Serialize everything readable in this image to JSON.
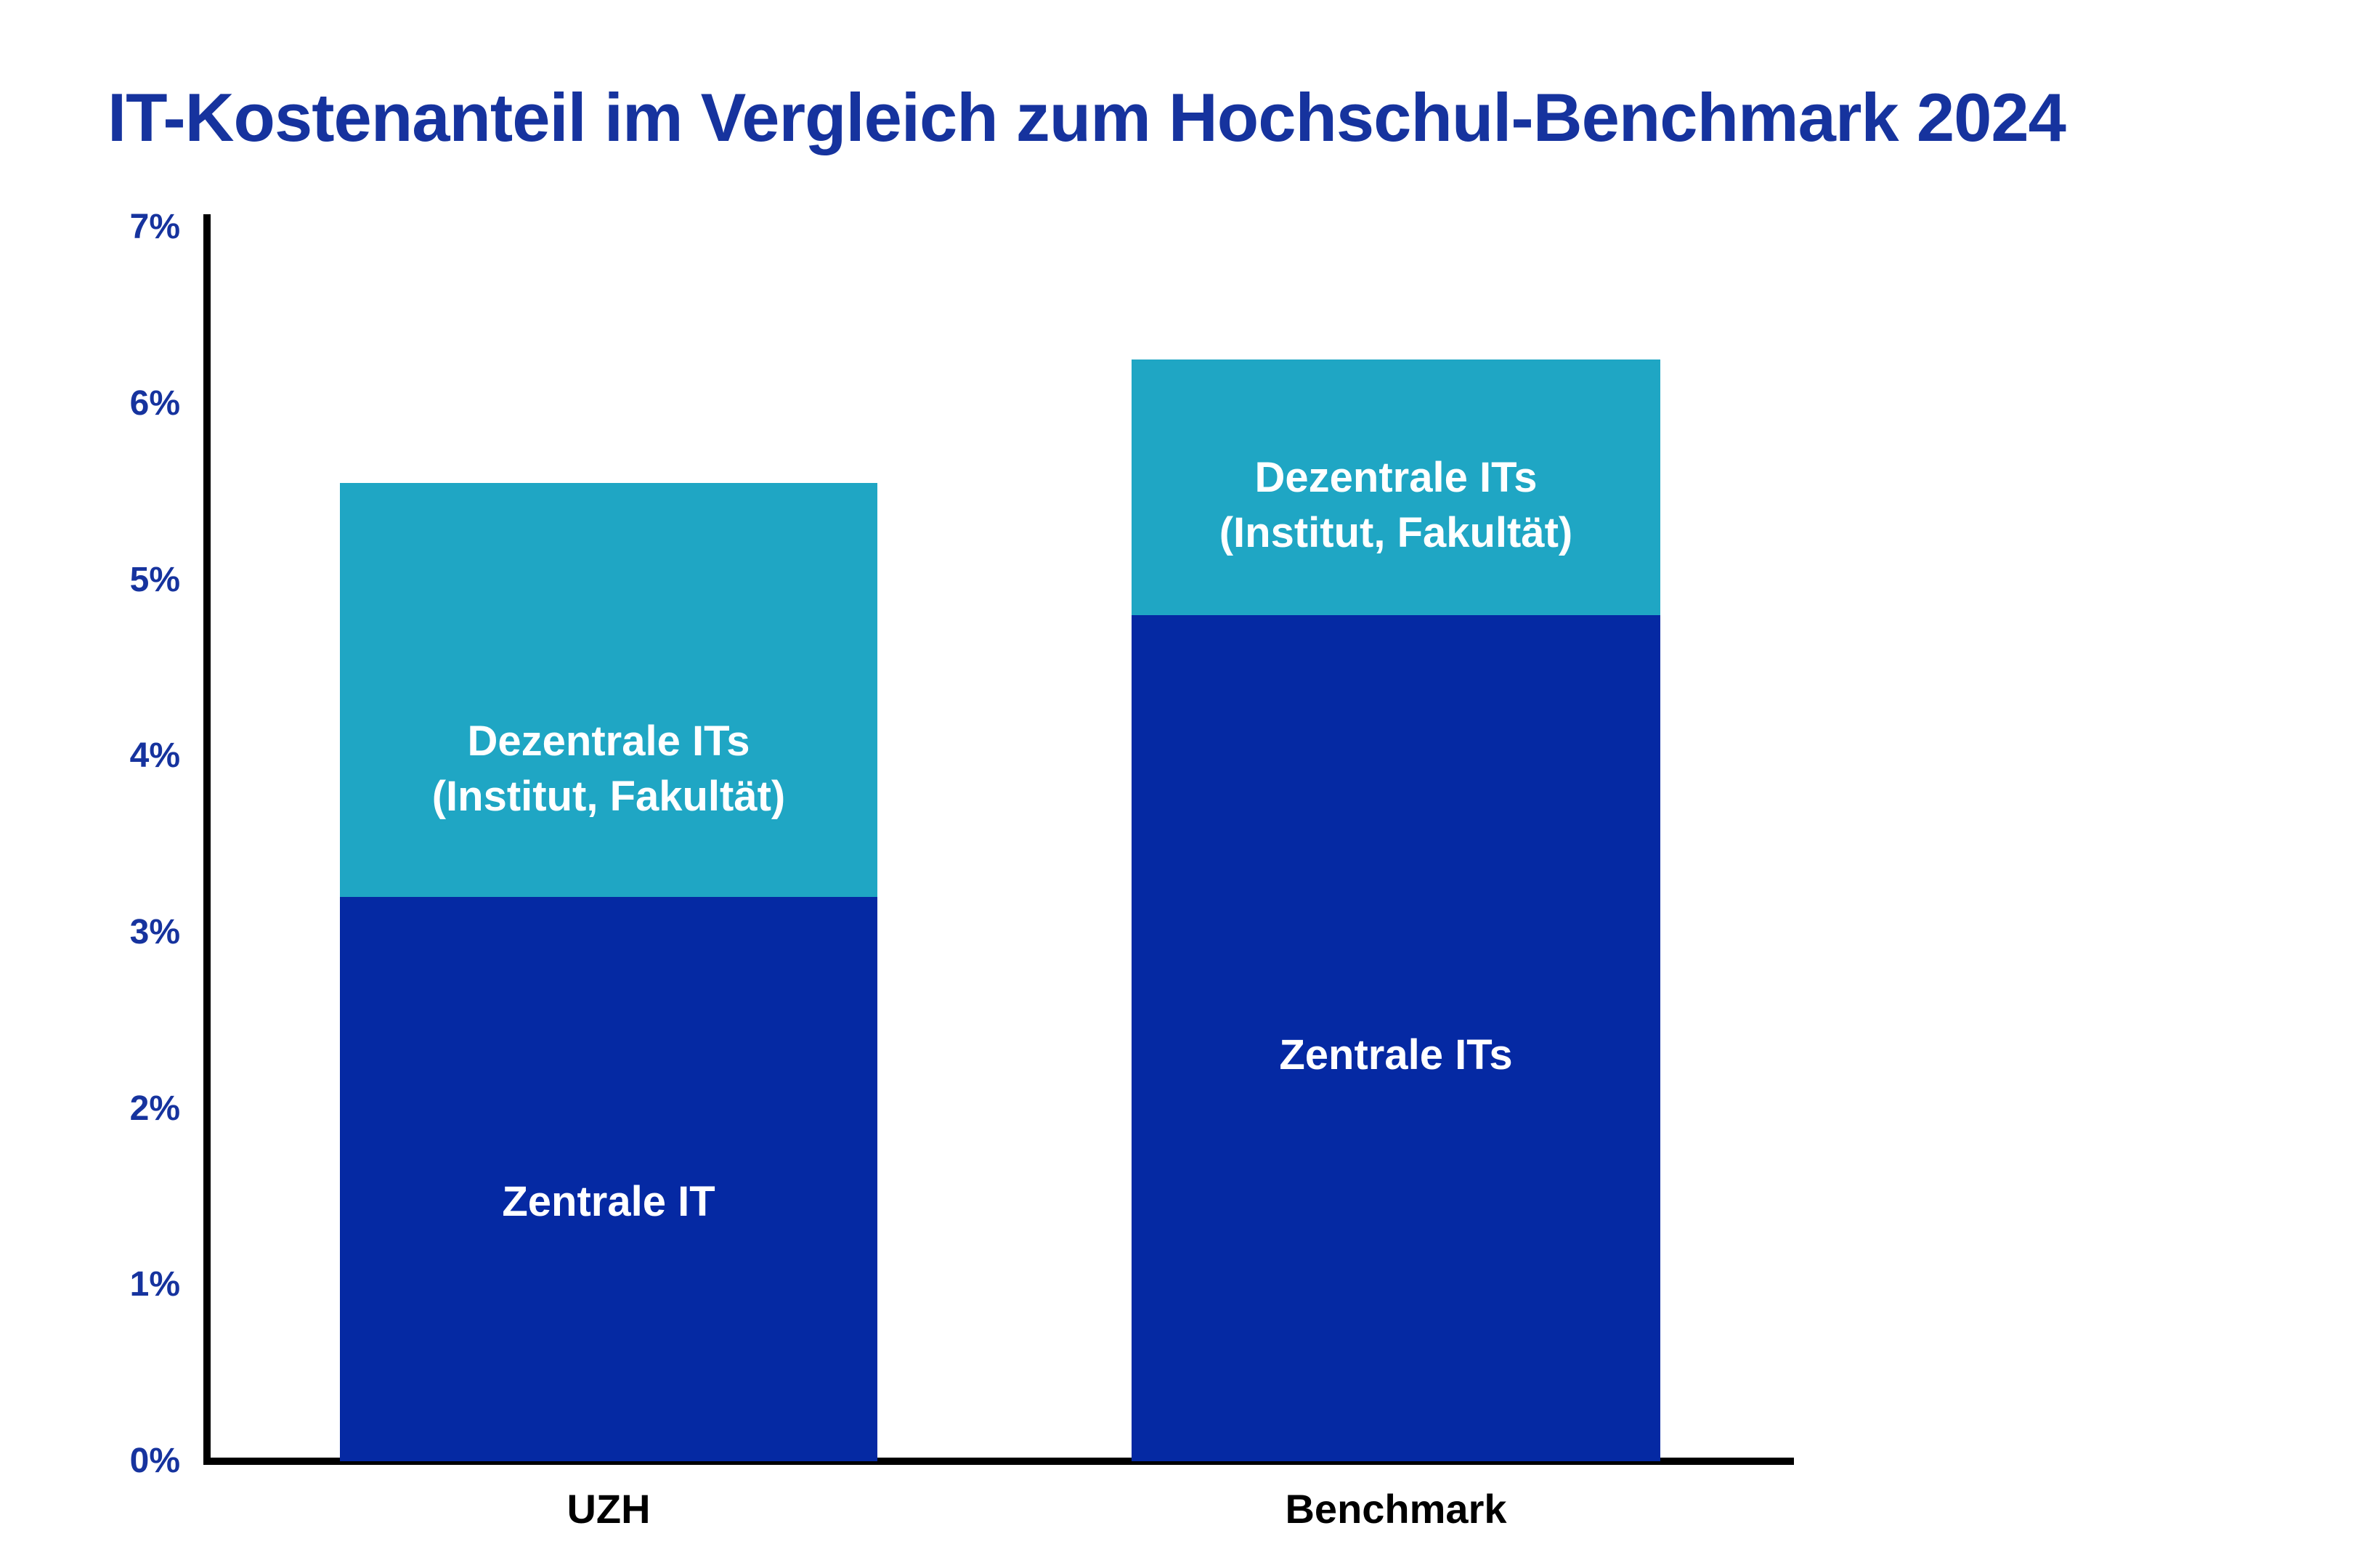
{
  "title": "IT-Kostenanteil im Vergleich zum Hochschul-Benchmark 2024",
  "colors": {
    "title_text": "#16339e",
    "tick_text": "#16339e",
    "axis": "#000000",
    "category_text": "#000000",
    "segment_label_text": "#ffffff",
    "zentrale_segment": "#0529a3",
    "dezentrale_segment": "#1fa6c4",
    "background": "#ffffff"
  },
  "chart_data": {
    "type": "bar",
    "stacked": true,
    "title": "IT-Kostenanteil im Vergleich zum Hochschul-Benchmark 2024",
    "categories": [
      "UZH",
      "Benchmark"
    ],
    "series": [
      {
        "name": "Zentrale IT",
        "color": "#0529a3",
        "values": [
          3.2,
          4.8
        ],
        "segment_labels": [
          [
            "Zentrale IT"
          ],
          [
            "Zentrale ITs"
          ]
        ]
      },
      {
        "name": "Dezentrale ITs (Institut, Fakultät)",
        "color": "#1fa6c4",
        "values": [
          2.35,
          1.45
        ],
        "segment_labels": [
          [
            "Dezentrale ITs",
            "(Institut, Fakultät)"
          ],
          [
            "Dezentrale ITs",
            "(Institut, Fakultät)"
          ]
        ]
      }
    ],
    "totals": [
      5.55,
      6.25
    ],
    "xlabel": "",
    "ylabel": "",
    "ylim": [
      0,
      7
    ],
    "y_ticks": [
      "0%",
      "1%",
      "2%",
      "3%",
      "4%",
      "5%",
      "6%",
      "7%"
    ],
    "grid": false,
    "legend_position": "none"
  }
}
